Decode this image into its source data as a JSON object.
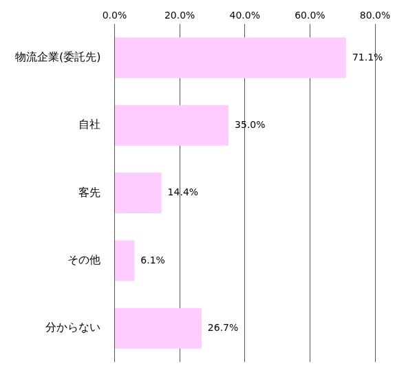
{
  "chart_data": {
    "type": "bar",
    "orientation": "horizontal",
    "categories": [
      "物流企業(委託先)",
      "自社",
      "客先",
      "その他",
      "分からない"
    ],
    "values": [
      71.1,
      35.0,
      14.4,
      6.1,
      26.7
    ],
    "value_labels": [
      "71.1%",
      "35.0%",
      "14.4%",
      "6.1%",
      "26.7%"
    ],
    "data_labels": true,
    "color": "#ffccff",
    "xlim": [
      0,
      80
    ],
    "xticks": [
      {
        "value": 0,
        "label": "0.0%"
      },
      {
        "value": 20,
        "label": "20.0%"
      },
      {
        "value": 40,
        "label": "40.0%"
      },
      {
        "value": 60,
        "label": "60.0%"
      },
      {
        "value": 80,
        "label": "80.0%"
      }
    ],
    "grid": true
  }
}
